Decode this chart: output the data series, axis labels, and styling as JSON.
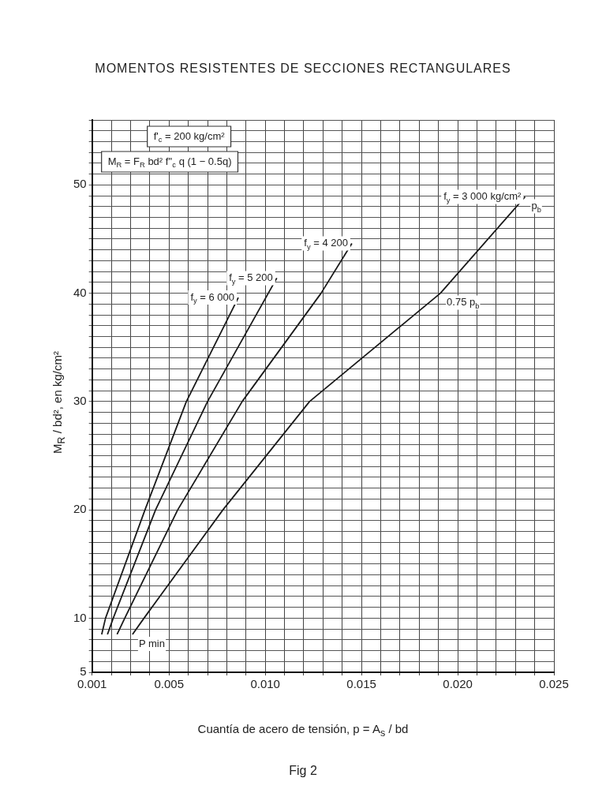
{
  "chart_data": {
    "type": "line",
    "title": "MOMENTOS RESISTENTES DE SECCIONES RECTANGULARES",
    "xlabel": "Cuantía de acero de tensión, p = A$_{s}$ / bd",
    "ylabel": "M$_{R}$ / bd², en kg/cm²",
    "xlim": [
      0.001,
      0.025
    ],
    "ylim": [
      5,
      56
    ],
    "xticks": [
      0.001,
      {
        "value": 0.002,
        "label": null
      },
      {
        "value": 0.003,
        "label": null
      },
      {
        "value": 0.004,
        "label": null
      },
      0.005,
      {
        "value": 0.006,
        "label": null
      },
      {
        "value": 0.007,
        "label": null
      },
      {
        "value": 0.008,
        "label": null
      },
      {
        "value": 0.009,
        "label": null
      },
      {
        "value": 0.01,
        "label": "0.010"
      },
      {
        "value": 0.011,
        "label": null
      },
      {
        "value": 0.012,
        "label": null
      },
      {
        "value": 0.013,
        "label": null
      },
      {
        "value": 0.014,
        "label": null
      },
      0.015,
      {
        "value": 0.016,
        "label": null
      },
      {
        "value": 0.017,
        "label": null
      },
      {
        "value": 0.018,
        "label": null
      },
      {
        "value": 0.019,
        "label": null
      },
      {
        "value": 0.02,
        "label": "0.020"
      },
      {
        "value": 0.021,
        "label": null
      },
      {
        "value": 0.022,
        "label": null
      },
      {
        "value": 0.023,
        "label": null
      },
      {
        "value": 0.024,
        "label": null
      },
      0.025
    ],
    "yticks": [
      5,
      {
        "value": 6,
        "label": null
      },
      {
        "value": 7,
        "label": null
      },
      {
        "value": 8,
        "label": null
      },
      {
        "value": 9,
        "label": null
      },
      10,
      {
        "value": 11,
        "label": null
      },
      {
        "value": 12,
        "label": null
      },
      {
        "value": 13,
        "label": null
      },
      {
        "value": 14,
        "label": null
      },
      {
        "value": 15,
        "label": null
      },
      {
        "value": 16,
        "label": null
      },
      {
        "value": 17,
        "label": null
      },
      {
        "value": 18,
        "label": null
      },
      {
        "value": 19,
        "label": null
      },
      20,
      {
        "value": 21,
        "label": null
      },
      {
        "value": 22,
        "label": null
      },
      {
        "value": 23,
        "label": null
      },
      {
        "value": 24,
        "label": null
      },
      {
        "value": 25,
        "label": null
      },
      {
        "value": 26,
        "label": null
      },
      {
        "value": 27,
        "label": null
      },
      {
        "value": 28,
        "label": null
      },
      {
        "value": 29,
        "label": null
      },
      30,
      {
        "value": 31,
        "label": null
      },
      {
        "value": 32,
        "label": null
      },
      {
        "value": 33,
        "label": null
      },
      {
        "value": 34,
        "label": null
      },
      {
        "value": 35,
        "label": null
      },
      {
        "value": 36,
        "label": null
      },
      {
        "value": 37,
        "label": null
      },
      {
        "value": 38,
        "label": null
      },
      {
        "value": 39,
        "label": null
      },
      40,
      {
        "value": 41,
        "label": null
      },
      {
        "value": 42,
        "label": null
      },
      {
        "value": 43,
        "label": null
      },
      {
        "value": 44,
        "label": null
      },
      {
        "value": 45,
        "label": null
      },
      {
        "value": 46,
        "label": null
      },
      {
        "value": 47,
        "label": null
      },
      {
        "value": 48,
        "label": null
      },
      {
        "value": 49,
        "label": null
      },
      50,
      {
        "value": 51,
        "label": null
      },
      {
        "value": 52,
        "label": null
      },
      {
        "value": 53,
        "label": null
      },
      {
        "value": 54,
        "label": null
      },
      {
        "value": 55,
        "label": null
      },
      {
        "value": 56,
        "label": null
      }
    ],
    "grid": true,
    "legend": false,
    "marker": "none",
    "line_style": "solid",
    "series": [
      {
        "name": "f$_{y}$ = 6 000",
        "color": "#1a1a1a",
        "x": [
          0.0015,
          0.0017,
          0.00375,
          0.0059,
          0.0086
        ],
        "values": [
          8.5,
          10,
          20,
          30,
          39.6
        ]
      },
      {
        "name": "f$_{y}$ = 5 200",
        "color": "#1a1a1a",
        "x": [
          0.0018,
          0.0021,
          0.0043,
          0.007,
          0.0106
        ],
        "values": [
          8.5,
          10,
          20,
          30,
          41.4
        ]
      },
      {
        "name": "f$_{y}$ = 4 200",
        "color": "#1a1a1a",
        "x": [
          0.0023,
          0.0027,
          0.00545,
          0.0088,
          0.0129,
          0.0145
        ],
        "values": [
          8.5,
          10,
          20,
          30,
          40,
          44.6
        ]
      },
      {
        "name": "f$_{y}$ = 3 000 kg/cm²",
        "color": "#1a1a1a",
        "x": [
          0.0031,
          0.0037,
          0.0078,
          0.0123,
          0.0191,
          0.0235
        ],
        "values": [
          8.5,
          10,
          20,
          30,
          40,
          48.9
        ]
      }
    ],
    "annotations": [
      "f'$_{c}$ = 200 kg/cm²",
      "M$_{R}$ = F$_{R}$ bd² f''$_{c}$ q (1 − 0.5q)",
      {
        "text": "P min",
        "x": 0.0031,
        "y": 8.5
      },
      {
        "text": "p$_{b}$",
        "x": 0.0235,
        "y": 48.9
      },
      {
        "text": "0.75 p$_{b}$",
        "x": 0.0191,
        "y": 40
      },
      "Fig 2"
    ]
  }
}
